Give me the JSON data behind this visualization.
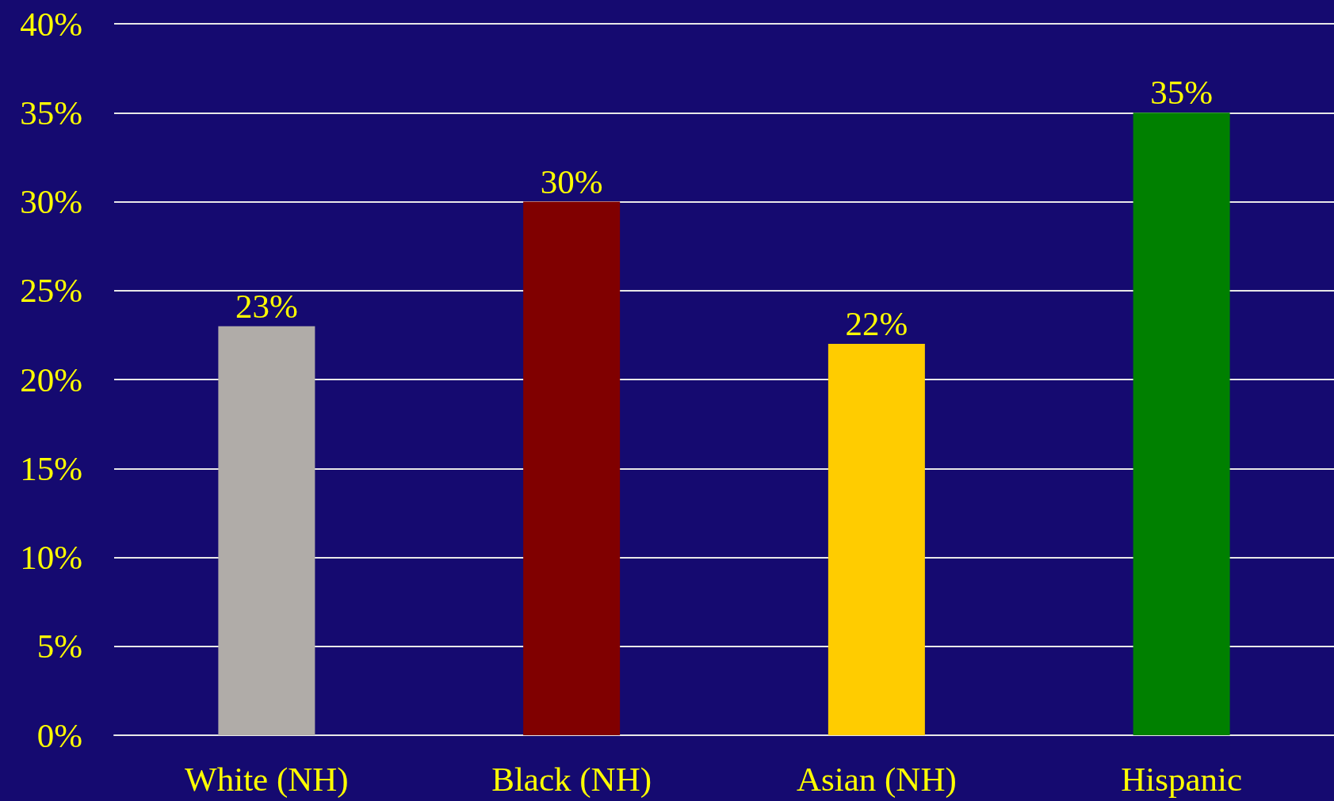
{
  "chart_data": {
    "type": "bar",
    "categories": [
      "White (NH)",
      "Black (NH)",
      "Asian (NH)",
      "Hispanic"
    ],
    "values": [
      23,
      30,
      22,
      35
    ],
    "colors": [
      "#b0aca8",
      "#800000",
      "#ffcc00",
      "#008000"
    ],
    "value_labels": [
      "23%",
      "30%",
      "22%",
      "35%"
    ],
    "ylim": [
      0,
      40
    ],
    "yticks": [
      {
        "value": 0,
        "label": "0%"
      },
      {
        "value": 5,
        "label": "5%"
      },
      {
        "value": 10,
        "label": "10%"
      },
      {
        "value": 15,
        "label": "15%"
      },
      {
        "value": 20,
        "label": "20%"
      },
      {
        "value": 25,
        "label": "25%"
      },
      {
        "value": 30,
        "label": "30%"
      },
      {
        "value": 35,
        "label": "35%"
      },
      {
        "value": 40,
        "label": "40%"
      }
    ],
    "grid": "y"
  }
}
